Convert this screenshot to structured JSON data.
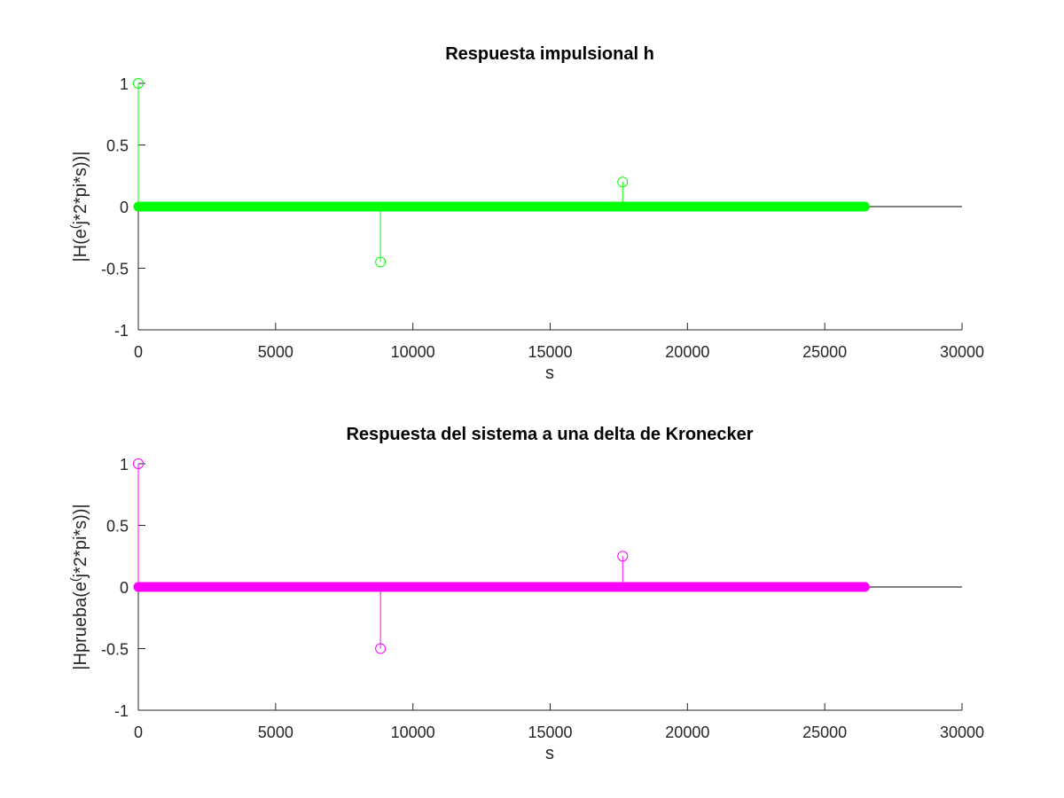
{
  "chart_data": [
    {
      "type": "stem",
      "title": "Respuesta impulsional h",
      "xlabel": "s",
      "ylabel": "|H(e^(j*2*pi*s))|",
      "ylabel_parts": {
        "pre": "|H(e",
        "sup": "(",
        "post": "j*2*pi*s))|"
      },
      "xlim": [
        0,
        30000
      ],
      "ylim": [
        -1,
        1
      ],
      "xticks": [
        "0",
        "5000",
        "10000",
        "15000",
        "20000",
        "25000",
        "30000"
      ],
      "xtick_values": [
        0,
        5000,
        10000,
        15000,
        20000,
        25000,
        30000
      ],
      "yticks": [
        "1",
        "0.5",
        "0",
        "-0.5",
        "-1"
      ],
      "ytick_values": [
        1,
        0.5,
        0,
        -0.5,
        -1
      ],
      "color": "#00ff00",
      "n_samples": 26460,
      "sample_range": [
        0,
        26460
      ],
      "baseline": 0,
      "nonzero_points": [
        {
          "x": 0,
          "y": 1
        },
        {
          "x": 8820,
          "y": -0.45
        },
        {
          "x": 17640,
          "y": 0.2
        }
      ]
    },
    {
      "type": "stem",
      "title": "Respuesta del sistema a una delta de Kronecker",
      "xlabel": "s",
      "ylabel": "|Hprueba(e^(j*2*pi*s))|",
      "ylabel_parts": {
        "pre": "|Hprueba(e",
        "sup": "(",
        "post": "j*2*pi*s))|"
      },
      "xlim": [
        0,
        30000
      ],
      "ylim": [
        -1,
        1
      ],
      "xticks": [
        "0",
        "5000",
        "10000",
        "15000",
        "20000",
        "25000",
        "30000"
      ],
      "xtick_values": [
        0,
        5000,
        10000,
        15000,
        20000,
        25000,
        30000
      ],
      "yticks": [
        "1",
        "0.5",
        "0",
        "-0.5",
        "-1"
      ],
      "ytick_values": [
        1,
        0.5,
        0,
        -0.5,
        -1
      ],
      "color": "#ff00ff",
      "n_samples": 26460,
      "sample_range": [
        0,
        26460
      ],
      "baseline": 0,
      "nonzero_points": [
        {
          "x": 0,
          "y": 1
        },
        {
          "x": 8820,
          "y": -0.5
        },
        {
          "x": 17640,
          "y": 0.25
        }
      ]
    }
  ]
}
